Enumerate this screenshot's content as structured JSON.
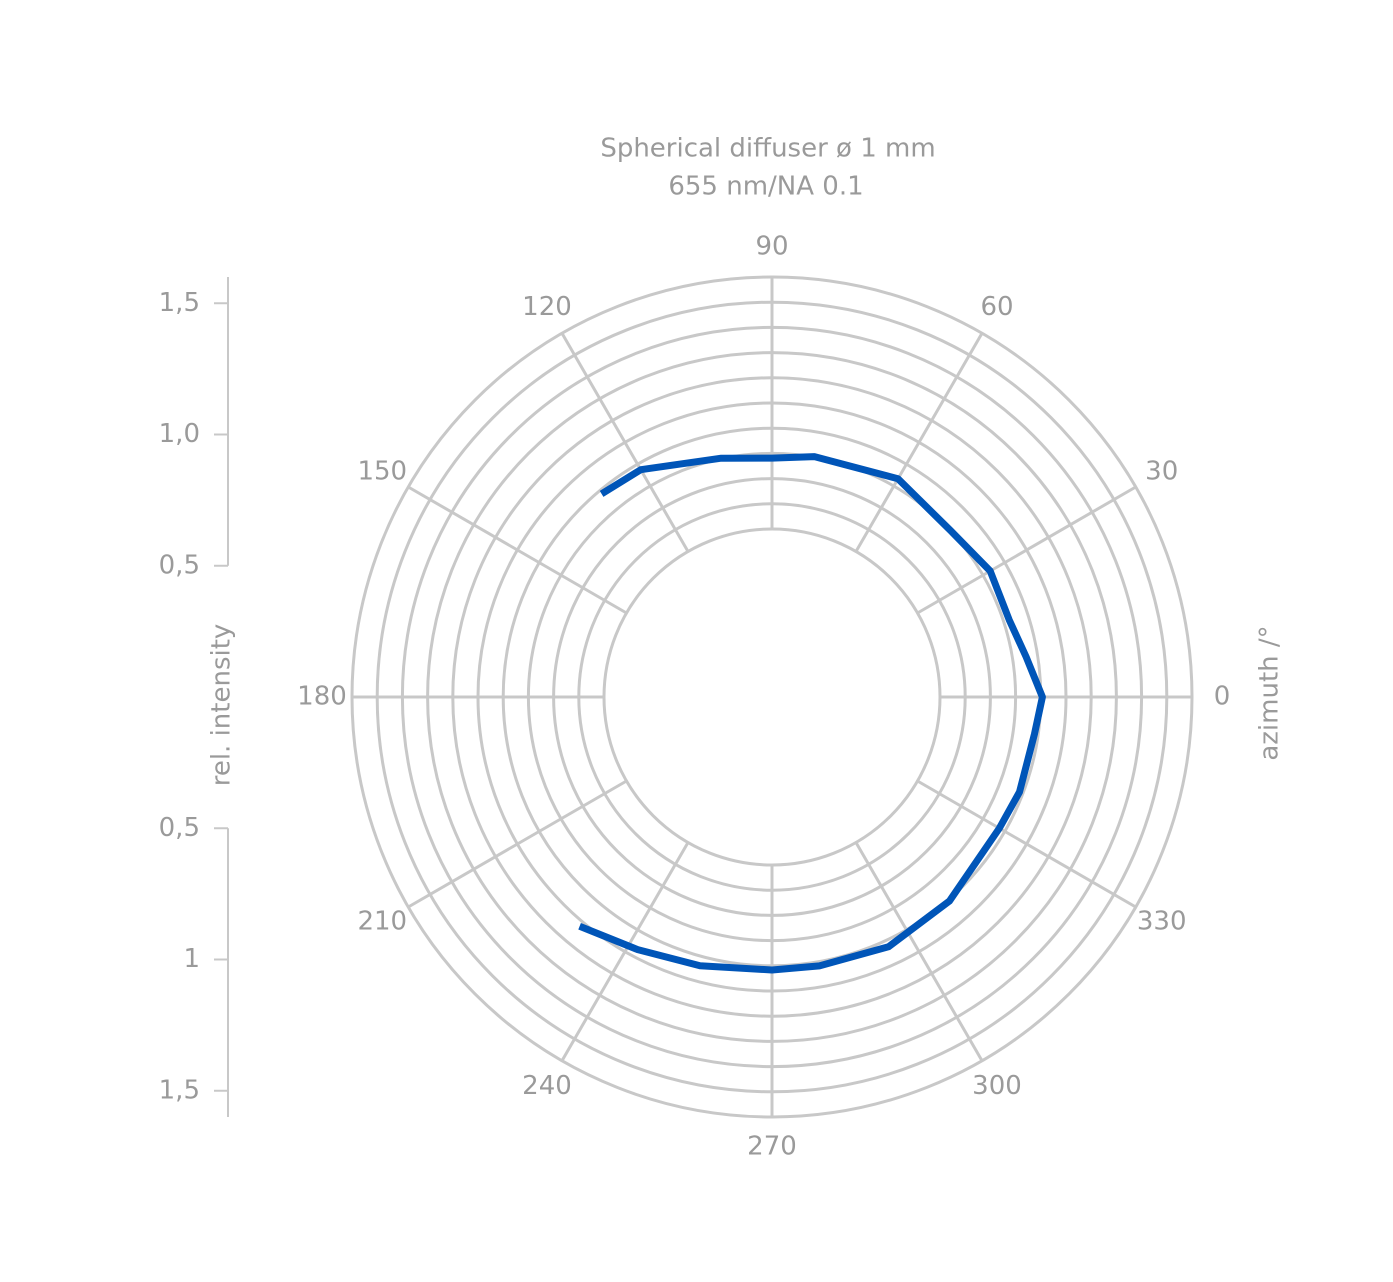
{
  "chart_data": {
    "type": "polar",
    "title": "Spherical diffuser ø 1 mm",
    "subtitle": "655 nm/NA 0.1",
    "r_label": "rel. intensity",
    "theta_label": "azimuth /°",
    "rlim": [
      0,
      1.6
    ],
    "rgrid": [
      0.64,
      0.736,
      0.832,
      0.928,
      1.024,
      1.12,
      1.216,
      1.312,
      1.408,
      1.504,
      1.6
    ],
    "rticks_upper": [
      {
        "value": 0.5,
        "label": "0,5"
      },
      {
        "value": 1.0,
        "label": "1,0"
      },
      {
        "value": 1.5,
        "label": "1,5"
      }
    ],
    "rticks_lower": [
      {
        "value": 0.5,
        "label": "0,5"
      },
      1,
      {
        "value": 1.5,
        "label": "1,5"
      }
    ],
    "thetaticks": [
      0,
      30,
      60,
      90,
      120,
      150,
      180,
      210,
      240,
      270,
      300,
      330
    ],
    "grid_color": "#c8c8c8",
    "series": [
      {
        "color": "#0055b8",
        "theta": [
          130,
          120,
          102,
          90,
          80,
          60,
          43,
          30,
          18,
          9,
          0,
          352,
          339,
          330,
          311,
          295,
          280,
          270,
          255,
          242,
          230
        ],
        "values": [
          1.01,
          1.0,
          0.93,
          0.91,
          0.93,
          0.96,
          0.93,
          0.96,
          0.95,
          0.98,
          1.03,
          1.01,
          1.01,
          1.0,
          1.03,
          1.05,
          1.04,
          1.04,
          1.06,
          1.09,
          1.14
        ]
      }
    ]
  }
}
